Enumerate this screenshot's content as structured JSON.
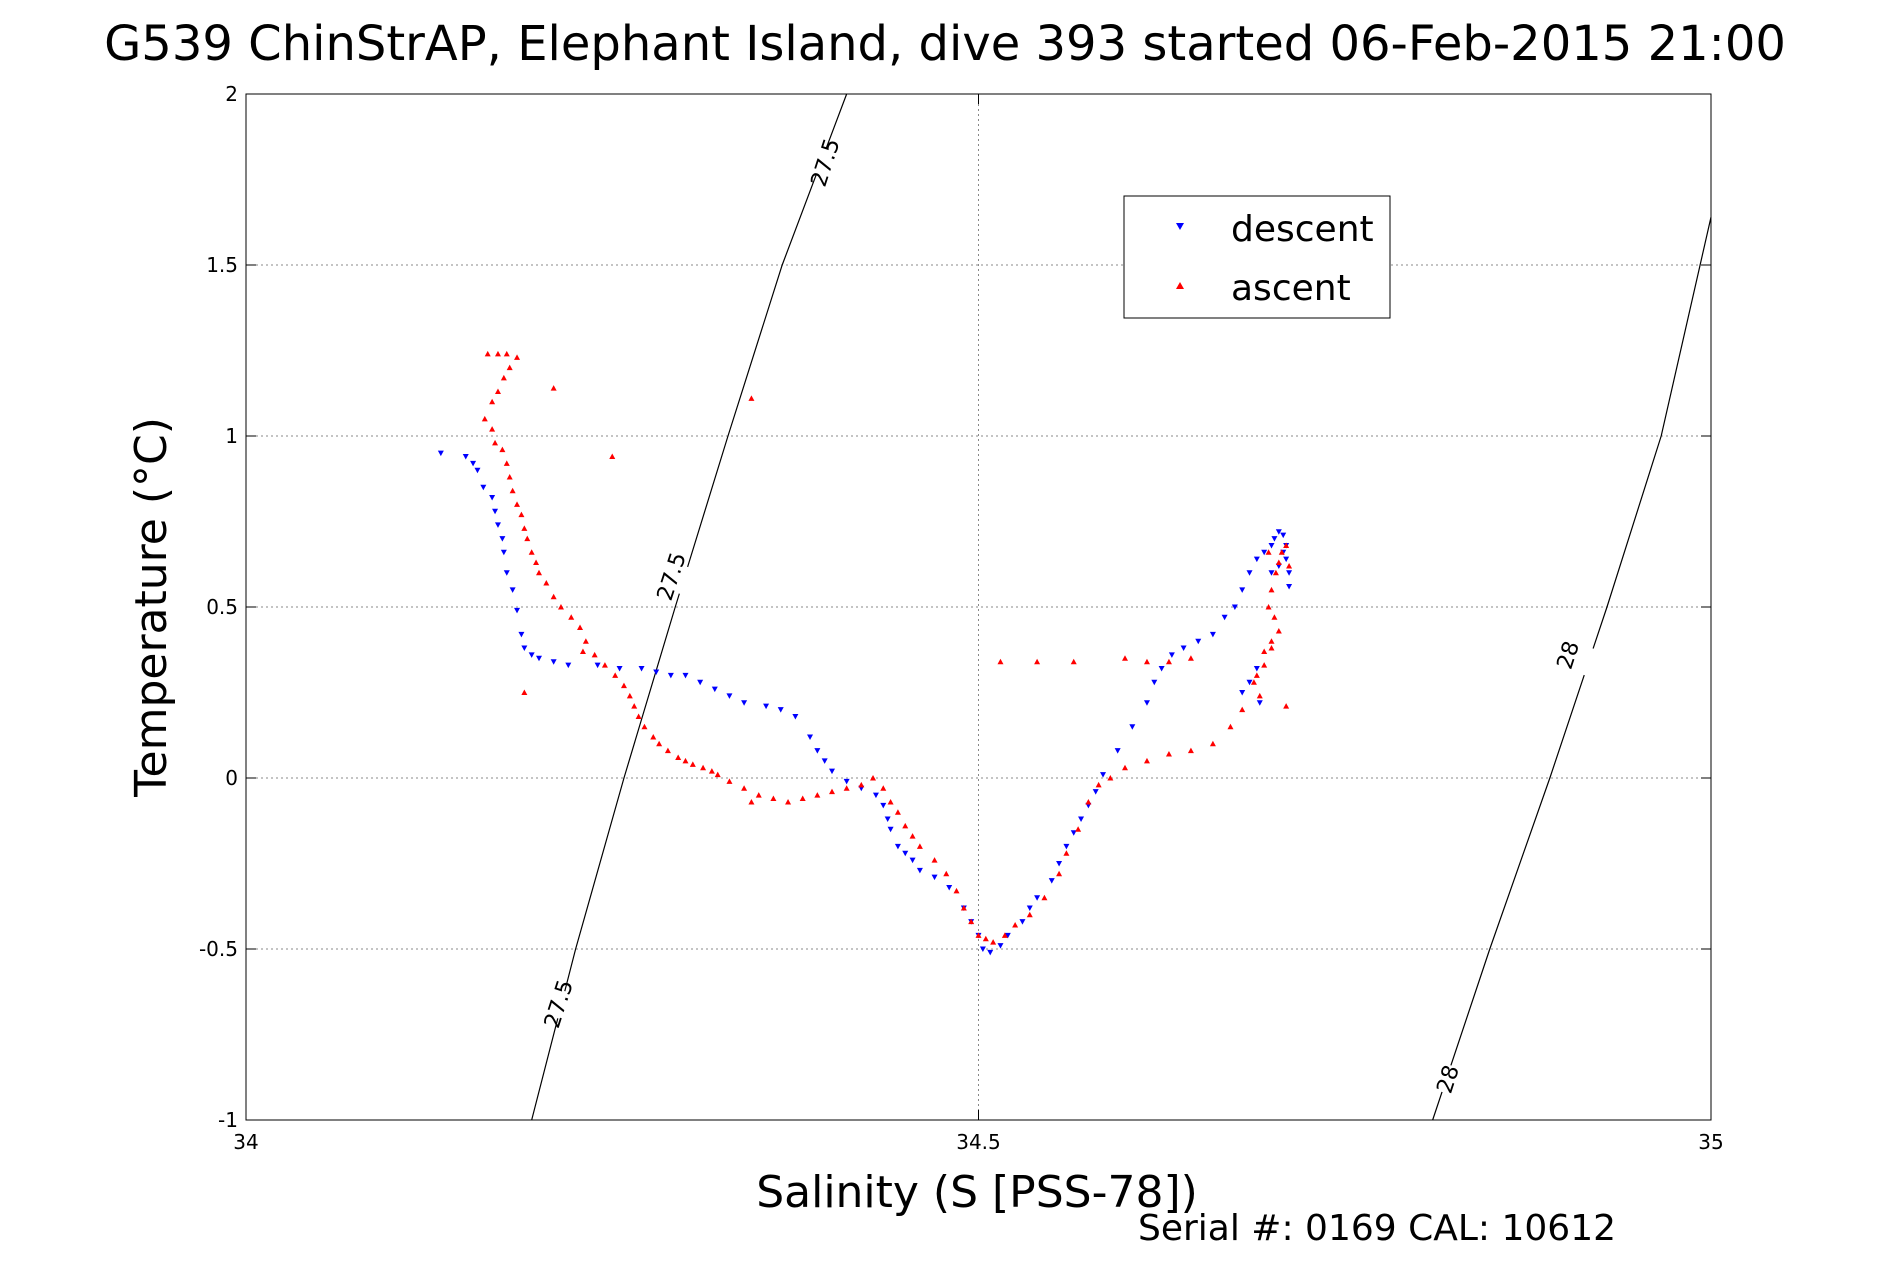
{
  "chart_data": {
    "type": "scatter",
    "title": "G539 ChinStrAP, Elephant Island, dive 393 started 06-Feb-2015 21:00",
    "xlabel": "Salinity (S [PSS-78])",
    "ylabel": "Temperature (°C)",
    "xlim": [
      34,
      35
    ],
    "ylim": [
      -1,
      2
    ],
    "xticks": [
      34,
      34.5,
      35
    ],
    "yticks": [
      -1,
      -0.5,
      0,
      0.5,
      1,
      1.5,
      2
    ],
    "xtick_labels": [
      "34",
      "34.5",
      "35"
    ],
    "ytick_labels": [
      "-1",
      "-0.5",
      "0",
      "0.5",
      "1",
      "1.5",
      "2"
    ],
    "grid": true,
    "legend_position": "top-right",
    "footer": "Serial #: 0169 CAL: 10612",
    "series": [
      {
        "name": "descent",
        "color": "#0000ff",
        "marker": "triangle-down",
        "points": [
          [
            34.133,
            0.95
          ],
          [
            34.15,
            0.94
          ],
          [
            34.155,
            0.92
          ],
          [
            34.158,
            0.9
          ],
          [
            34.162,
            0.85
          ],
          [
            34.168,
            0.82
          ],
          [
            34.17,
            0.78
          ],
          [
            34.172,
            0.74
          ],
          [
            34.175,
            0.7
          ],
          [
            34.176,
            0.66
          ],
          [
            34.178,
            0.6
          ],
          [
            34.182,
            0.55
          ],
          [
            34.185,
            0.49
          ],
          [
            34.188,
            0.42
          ],
          [
            34.19,
            0.38
          ],
          [
            34.195,
            0.36
          ],
          [
            34.2,
            0.35
          ],
          [
            34.21,
            0.34
          ],
          [
            34.22,
            0.33
          ],
          [
            34.24,
            0.33
          ],
          [
            34.255,
            0.32
          ],
          [
            34.27,
            0.32
          ],
          [
            34.28,
            0.31
          ],
          [
            34.29,
            0.3
          ],
          [
            34.3,
            0.3
          ],
          [
            34.31,
            0.28
          ],
          [
            34.32,
            0.26
          ],
          [
            34.33,
            0.24
          ],
          [
            34.34,
            0.22
          ],
          [
            34.355,
            0.21
          ],
          [
            34.365,
            0.2
          ],
          [
            34.375,
            0.18
          ],
          [
            34.385,
            0.12
          ],
          [
            34.39,
            0.08
          ],
          [
            34.395,
            0.05
          ],
          [
            34.4,
            0.02
          ],
          [
            34.41,
            -0.01
          ],
          [
            34.42,
            -0.03
          ],
          [
            34.43,
            -0.05
          ],
          [
            34.435,
            -0.08
          ],
          [
            34.438,
            -0.12
          ],
          [
            34.44,
            -0.15
          ],
          [
            34.445,
            -0.2
          ],
          [
            34.45,
            -0.22
          ],
          [
            34.455,
            -0.24
          ],
          [
            34.46,
            -0.27
          ],
          [
            34.47,
            -0.29
          ],
          [
            34.48,
            -0.32
          ],
          [
            34.49,
            -0.38
          ],
          [
            34.495,
            -0.42
          ],
          [
            34.5,
            -0.46
          ],
          [
            34.503,
            -0.5
          ],
          [
            34.508,
            -0.51
          ],
          [
            34.515,
            -0.49
          ],
          [
            34.52,
            -0.46
          ],
          [
            34.53,
            -0.42
          ],
          [
            34.535,
            -0.38
          ],
          [
            34.54,
            -0.35
          ],
          [
            34.55,
            -0.3
          ],
          [
            34.555,
            -0.25
          ],
          [
            34.56,
            -0.2
          ],
          [
            34.565,
            -0.16
          ],
          [
            34.57,
            -0.12
          ],
          [
            34.575,
            -0.08
          ],
          [
            34.58,
            -0.04
          ],
          [
            34.585,
            0.01
          ],
          [
            34.595,
            0.08
          ],
          [
            34.605,
            0.15
          ],
          [
            34.615,
            0.22
          ],
          [
            34.62,
            0.28
          ],
          [
            34.625,
            0.32
          ],
          [
            34.632,
            0.36
          ],
          [
            34.64,
            0.38
          ],
          [
            34.65,
            0.4
          ],
          [
            34.66,
            0.42
          ],
          [
            34.668,
            0.47
          ],
          [
            34.675,
            0.5
          ],
          [
            34.68,
            0.55
          ],
          [
            34.685,
            0.6
          ],
          [
            34.69,
            0.64
          ],
          [
            34.695,
            0.66
          ],
          [
            34.7,
            0.68
          ],
          [
            34.702,
            0.7
          ],
          [
            34.705,
            0.72
          ],
          [
            34.708,
            0.71
          ],
          [
            34.71,
            0.68
          ],
          [
            34.71,
            0.64
          ],
          [
            34.712,
            0.6
          ],
          [
            34.712,
            0.56
          ],
          [
            34.7,
            0.6
          ],
          [
            34.69,
            0.32
          ],
          [
            34.685,
            0.28
          ],
          [
            34.68,
            0.25
          ],
          [
            34.692,
            0.22
          ],
          [
            34.705,
            0.62
          ],
          [
            34.708,
            0.66
          ]
        ]
      },
      {
        "name": "ascent",
        "color": "#ff0000",
        "marker": "triangle-up",
        "points": [
          [
            34.165,
            1.24
          ],
          [
            34.172,
            1.24
          ],
          [
            34.178,
            1.24
          ],
          [
            34.185,
            1.23
          ],
          [
            34.18,
            1.2
          ],
          [
            34.176,
            1.17
          ],
          [
            34.172,
            1.13
          ],
          [
            34.168,
            1.1
          ],
          [
            34.163,
            1.05
          ],
          [
            34.168,
            1.02
          ],
          [
            34.17,
            0.98
          ],
          [
            34.175,
            0.96
          ],
          [
            34.178,
            0.92
          ],
          [
            34.18,
            0.88
          ],
          [
            34.182,
            0.84
          ],
          [
            34.185,
            0.8
          ],
          [
            34.188,
            0.77
          ],
          [
            34.19,
            0.73
          ],
          [
            34.192,
            0.7
          ],
          [
            34.195,
            0.66
          ],
          [
            34.198,
            0.63
          ],
          [
            34.2,
            0.6
          ],
          [
            34.205,
            0.57
          ],
          [
            34.21,
            0.53
          ],
          [
            34.215,
            0.5
          ],
          [
            34.222,
            0.47
          ],
          [
            34.228,
            0.44
          ],
          [
            34.232,
            0.4
          ],
          [
            34.238,
            0.36
          ],
          [
            34.245,
            0.33
          ],
          [
            34.252,
            0.3
          ],
          [
            34.258,
            0.27
          ],
          [
            34.262,
            0.24
          ],
          [
            34.265,
            0.21
          ],
          [
            34.268,
            0.18
          ],
          [
            34.272,
            0.15
          ],
          [
            34.278,
            0.12
          ],
          [
            34.282,
            0.1
          ],
          [
            34.288,
            0.08
          ],
          [
            34.295,
            0.06
          ],
          [
            34.3,
            0.05
          ],
          [
            34.305,
            0.04
          ],
          [
            34.312,
            0.03
          ],
          [
            34.318,
            0.02
          ],
          [
            34.322,
            0.01
          ],
          [
            34.33,
            -0.01
          ],
          [
            34.34,
            -0.03
          ],
          [
            34.35,
            -0.05
          ],
          [
            34.36,
            -0.06
          ],
          [
            34.37,
            -0.07
          ],
          [
            34.38,
            -0.06
          ],
          [
            34.39,
            -0.05
          ],
          [
            34.4,
            -0.04
          ],
          [
            34.41,
            -0.03
          ],
          [
            34.42,
            -0.02
          ],
          [
            34.428,
            0.0
          ],
          [
            34.435,
            -0.03
          ],
          [
            34.44,
            -0.07
          ],
          [
            34.445,
            -0.1
          ],
          [
            34.45,
            -0.14
          ],
          [
            34.455,
            -0.17
          ],
          [
            34.46,
            -0.2
          ],
          [
            34.47,
            -0.24
          ],
          [
            34.478,
            -0.28
          ],
          [
            34.485,
            -0.33
          ],
          [
            34.49,
            -0.38
          ],
          [
            34.495,
            -0.42
          ],
          [
            34.5,
            -0.46
          ],
          [
            34.505,
            -0.47
          ],
          [
            34.51,
            -0.48
          ],
          [
            34.518,
            -0.46
          ],
          [
            34.525,
            -0.43
          ],
          [
            34.535,
            -0.4
          ],
          [
            34.545,
            -0.35
          ],
          [
            34.555,
            -0.28
          ],
          [
            34.56,
            -0.22
          ],
          [
            34.568,
            -0.15
          ],
          [
            34.575,
            -0.07
          ],
          [
            34.582,
            -0.02
          ],
          [
            34.59,
            0.0
          ],
          [
            34.6,
            0.03
          ],
          [
            34.615,
            0.05
          ],
          [
            34.63,
            0.07
          ],
          [
            34.645,
            0.08
          ],
          [
            34.66,
            0.1
          ],
          [
            34.672,
            0.15
          ],
          [
            34.68,
            0.2
          ],
          [
            34.688,
            0.28
          ],
          [
            34.695,
            0.33
          ],
          [
            34.7,
            0.38
          ],
          [
            34.705,
            0.43
          ],
          [
            34.702,
            0.47
          ],
          [
            34.698,
            0.5
          ],
          [
            34.7,
            0.55
          ],
          [
            34.703,
            0.6
          ],
          [
            34.705,
            0.63
          ],
          [
            34.707,
            0.66
          ],
          [
            34.71,
            0.68
          ],
          [
            34.698,
            0.66
          ],
          [
            34.712,
            0.62
          ],
          [
            34.7,
            0.4
          ],
          [
            34.695,
            0.37
          ],
          [
            34.69,
            0.3
          ],
          [
            34.692,
            0.24
          ],
          [
            34.71,
            0.21
          ],
          [
            34.6,
            0.35
          ],
          [
            34.615,
            0.34
          ],
          [
            34.63,
            0.34
          ],
          [
            34.645,
            0.35
          ],
          [
            34.515,
            0.34
          ],
          [
            34.54,
            0.34
          ],
          [
            34.565,
            0.34
          ],
          [
            34.25,
            0.94
          ],
          [
            34.345,
            1.11
          ],
          [
            34.21,
            1.14
          ],
          [
            34.23,
            0.37
          ],
          [
            34.19,
            0.25
          ],
          [
            34.345,
            -0.07
          ]
        ]
      }
    ],
    "isopycnals": [
      {
        "label": "27.5",
        "points": [
          [
            34.195,
            -1.0
          ],
          [
            34.225,
            -0.5
          ],
          [
            34.258,
            0.0
          ],
          [
            34.293,
            0.5
          ],
          [
            34.329,
            1.0
          ],
          [
            34.366,
            1.5
          ],
          [
            34.41,
            2.0
          ]
        ],
        "label_positions": [
          [
            34.213,
            -0.66
          ],
          [
            34.29,
            0.59
          ],
          [
            34.395,
            1.8
          ]
        ]
      },
      {
        "label": "28",
        "points": [
          [
            34.81,
            -1.0
          ],
          [
            34.849,
            -0.5
          ],
          [
            34.89,
            0.0
          ],
          [
            34.929,
            0.5
          ],
          [
            34.966,
            1.0
          ],
          [
            35.0,
            1.64
          ]
        ],
        "label_positions": [
          [
            34.82,
            -0.88
          ],
          [
            34.902,
            0.36
          ]
        ]
      }
    ]
  }
}
